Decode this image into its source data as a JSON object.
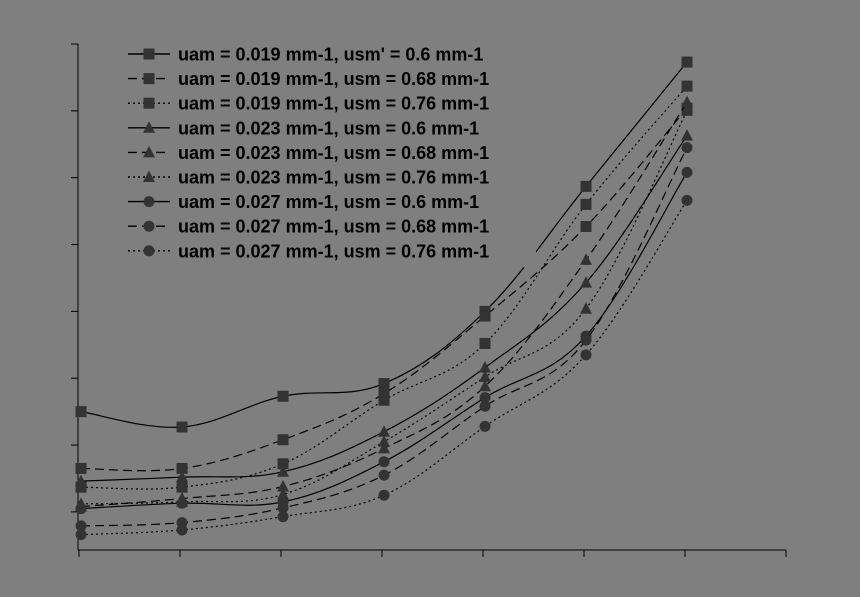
{
  "chart_data": {
    "type": "line",
    "title": "",
    "xlabel": "",
    "ylabel": "",
    "grid": false,
    "legend_position": "top-left",
    "x": [
      1,
      2,
      3,
      4,
      5,
      6,
      7
    ],
    "xlim": [
      0.97,
      7.98
    ],
    "ylim": [
      0.43,
      8.0
    ],
    "y_major_ticks": [
      1,
      2,
      3,
      4,
      5,
      6,
      7,
      8
    ],
    "series": [
      {
        "name": "uam = 0.019 mm-1, usm' = 0.6 mm-1",
        "marker": "square",
        "dash": "solid",
        "values": [
          2.5,
          2.27,
          2.73,
          2.92,
          4.0,
          5.87,
          7.73
        ]
      },
      {
        "name": "uam = 0.019 mm-1, usm = 0.68 mm-1",
        "marker": "square",
        "dash": "dashed",
        "values": [
          1.65,
          1.65,
          2.08,
          2.77,
          3.93,
          5.27,
          7.04
        ]
      },
      {
        "name": "uam = 0.019 mm-1, usm = 0.76 mm-1",
        "marker": "square",
        "dash": "dotted",
        "values": [
          1.37,
          1.37,
          1.72,
          2.67,
          3.52,
          5.6,
          7.37
        ]
      },
      {
        "name": "uam = 0.023 mm-1, usm = 0.6 mm-1",
        "marker": "triangle",
        "dash": "solid",
        "values": [
          1.46,
          1.52,
          1.6,
          2.2,
          3.16,
          4.43,
          6.63
        ]
      },
      {
        "name": "uam = 0.023 mm-1, usm = 0.68 mm-1",
        "marker": "triangle",
        "dash": "dashed",
        "values": [
          1.08,
          1.2,
          1.38,
          1.95,
          2.88,
          4.77,
          7.13
        ]
      },
      {
        "name": "uam = 0.023 mm-1, usm = 0.76 mm-1",
        "marker": "triangle",
        "dash": "dotted",
        "values": [
          1.12,
          1.15,
          1.26,
          2.05,
          3.02,
          4.04,
          7.0
        ]
      },
      {
        "name": "uam = 0.027 mm-1, usm = 0.6 mm-1",
        "marker": "circle",
        "dash": "solid",
        "values": [
          1.05,
          1.13,
          1.15,
          1.75,
          2.71,
          3.63,
          6.08
        ]
      },
      {
        "name": "uam = 0.027 mm-1, usm = 0.68 mm-1",
        "marker": "circle",
        "dash": "dashed",
        "values": [
          0.79,
          0.84,
          1.06,
          1.55,
          2.58,
          3.57,
          6.45
        ]
      },
      {
        "name": "uam = 0.027 mm-1, usm = 0.76 mm-1",
        "marker": "circle",
        "dash": "dotted",
        "values": [
          0.66,
          0.73,
          0.93,
          1.25,
          2.28,
          3.35,
          5.66
        ]
      }
    ]
  }
}
